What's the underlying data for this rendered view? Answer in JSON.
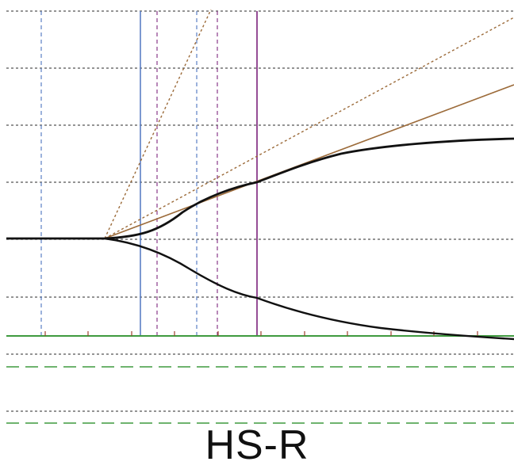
{
  "caption": "HS-R",
  "colors": {
    "grid": "#555555",
    "blue_line": "#5b7fc4",
    "purple_line": "#8a3a8a",
    "tan_line": "#9c6b3a",
    "green_line": "#3f9a3f",
    "tick": "#a04030",
    "curve": "#111111"
  }
}
